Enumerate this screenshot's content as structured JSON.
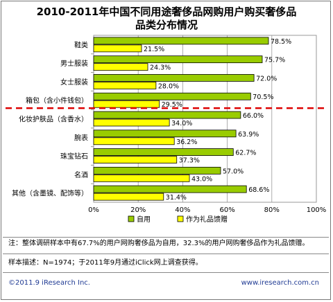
{
  "title_line1": "2010-2011年中国不同用途奢侈品网购用户购买奢侈品",
  "title_line2": "品类分布情况",
  "note": "注：整体调研样本中有67.7%的用户网购奢侈品为自用，32.3%的用户网购奢侈品作为礼品馈赠。",
  "sample": "样本描述：N=1974；于2011年9月通过iClick网上调查获得。",
  "footer_left": "©2011.9 iResearch Inc.",
  "footer_right": "www.iresearch.com.cn",
  "colors": {
    "self_use": "#99CC00",
    "gift": "#FFFF00",
    "divider": "#DD0000",
    "bar_border": "#000000"
  },
  "chart_data": {
    "type": "bar",
    "orientation": "horizontal",
    "categories": [
      "鞋类",
      "男士服装",
      "女士服装",
      "箱包（含小件钱包）",
      "化妆护肤品（含香水）",
      "腕表",
      "珠宝钻石",
      "名酒",
      "其他（含墨镜、配饰等）"
    ],
    "series": [
      {
        "name": "自用",
        "values": [
          78.5,
          75.7,
          72.0,
          70.5,
          66.0,
          63.9,
          62.7,
          57.0,
          68.6
        ],
        "labels": [
          "78.5%",
          "75.7%",
          "72.0%",
          "70.5%",
          "66.0%",
          "63.9%",
          "62.7%",
          "57.0%",
          "68.6%"
        ]
      },
      {
        "name": "作为礼品馈赠",
        "values": [
          21.5,
          24.3,
          28.0,
          29.5,
          34.0,
          36.2,
          37.3,
          43.0,
          31.4
        ],
        "labels": [
          "21.5%",
          "24.3%",
          "28.0%",
          "29.5%",
          "34.0%",
          "36.2%",
          "37.3%",
          "43.0%",
          "31.4%"
        ]
      }
    ],
    "xlim": [
      0,
      100
    ],
    "xticks": [
      "0%",
      "20%",
      "40%",
      "60%",
      "80%",
      "100%"
    ],
    "grid": true,
    "legend_position": "bottom",
    "divider_after_index": 3
  }
}
